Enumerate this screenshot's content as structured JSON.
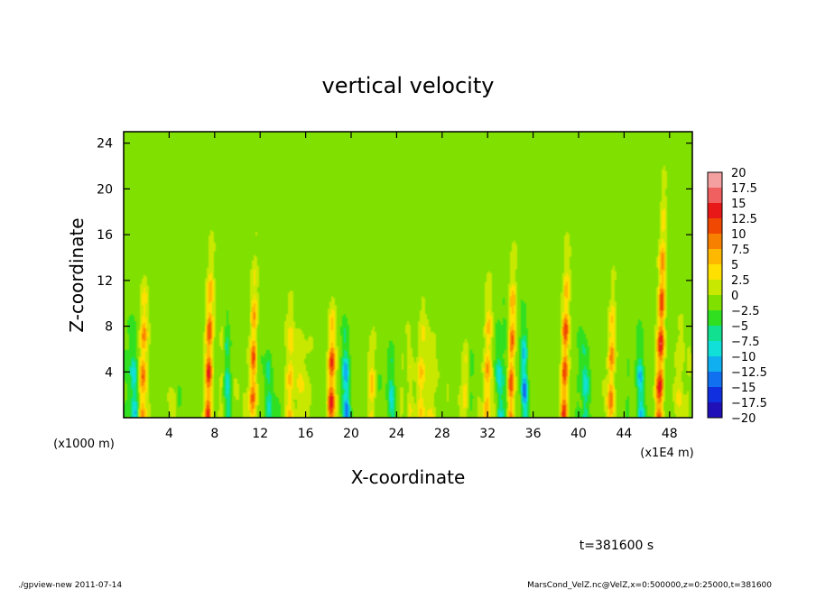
{
  "chart_data": {
    "type": "heatmap",
    "title": "vertical velocity",
    "xlabel": "X-coordinate",
    "ylabel": "Z-coordinate",
    "xlim": [
      0,
      50
    ],
    "ylim": [
      0,
      25
    ],
    "x_scale_label": "(x1E4 m)",
    "y_scale_label": "(x1000 m)",
    "x_ticks": [
      4,
      8,
      12,
      16,
      20,
      24,
      28,
      32,
      36,
      40,
      44,
      48
    ],
    "y_ticks": [
      4,
      8,
      12,
      16,
      20,
      24
    ],
    "grid": false,
    "colorbar": {
      "labels": [
        "20",
        "17.5",
        "15",
        "12.5",
        "10",
        "7.5",
        "5",
        "2.5",
        "0",
        "−2.5",
        "−5",
        "−7.5",
        "−10",
        "−12.5",
        "−15",
        "−17.5",
        "−20"
      ],
      "colors": [
        "#f4a0a0",
        "#f06060",
        "#e81818",
        "#f04800",
        "#f88000",
        "#ffb800",
        "#ffe000",
        "#c8e800",
        "#80e000",
        "#30e020",
        "#10e090",
        "#10e0d8",
        "#10b0f0",
        "#1070f0",
        "#1030e0",
        "#2010b8",
        "#6010a8"
      ]
    },
    "updrafts": [
      {
        "x": 1.6,
        "top": 9.5,
        "peak": 10
      },
      {
        "x": 7.4,
        "top": 11.5,
        "peak": 15
      },
      {
        "x": 11.3,
        "top": 11,
        "peak": 12
      },
      {
        "x": 14.6,
        "top": 8,
        "peak": 6
      },
      {
        "x": 18.2,
        "top": 8,
        "peak": 13
      },
      {
        "x": 21.8,
        "top": 7,
        "peak": 6
      },
      {
        "x": 26.0,
        "top": 7,
        "peak": 5
      },
      {
        "x": 30.0,
        "top": 7,
        "peak": 6
      },
      {
        "x": 31.9,
        "top": 10,
        "peak": 9
      },
      {
        "x": 34.0,
        "top": 11,
        "peak": 14
      },
      {
        "x": 38.7,
        "top": 11.5,
        "peak": 14
      },
      {
        "x": 42.8,
        "top": 9,
        "peak": 11
      },
      {
        "x": 47.1,
        "top": 15,
        "peak": 16
      }
    ],
    "downdrafts": [
      {
        "x": 1.0,
        "top": 6,
        "peak": -9
      },
      {
        "x": 9.2,
        "top": 7,
        "peak": -8
      },
      {
        "x": 12.8,
        "top": 6,
        "peak": -7
      },
      {
        "x": 19.6,
        "top": 6,
        "peak": -13
      },
      {
        "x": 23.6,
        "top": 5,
        "peak": -8
      },
      {
        "x": 33.1,
        "top": 6,
        "peak": -9
      },
      {
        "x": 35.3,
        "top": 7,
        "peak": -14
      },
      {
        "x": 40.6,
        "top": 6,
        "peak": -9
      },
      {
        "x": 45.5,
        "top": 6,
        "peak": -10
      }
    ]
  },
  "annotations": {
    "time": "t=381600 s",
    "footer_left": "./gpview-new   2011-07-14",
    "footer_right": "MarsCond_VelZ.nc@VelZ,x=0:500000,z=0:25000,t=381600"
  }
}
